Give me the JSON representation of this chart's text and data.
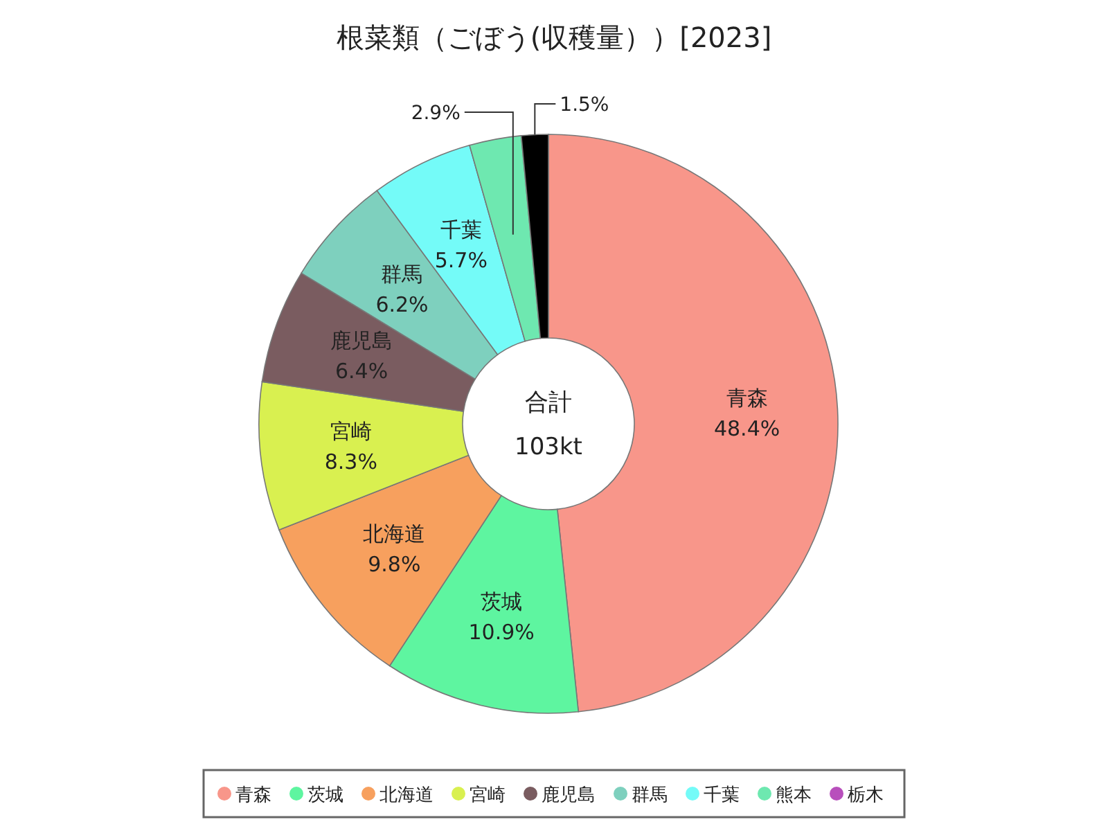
{
  "chart_data": {
    "type": "donut",
    "title": "根菜類（ごぼう(収穫量））[2023]",
    "categories": [
      "青森",
      "茨城",
      "北海道",
      "宮崎",
      "鹿児島",
      "群馬",
      "千葉",
      "熊本",
      null,
      "栃木"
    ],
    "values": [
      48.4,
      10.9,
      9.8,
      8.3,
      6.4,
      6.2,
      5.7,
      2.9,
      1.5,
      0
    ],
    "colors": [
      "#f8968a",
      "#5ef5a0",
      "#f7a05e",
      "#d9f050",
      "#7a5c60",
      "#7ed0be",
      "#74fbf8",
      "#6ee8b0",
      "#000000",
      "#b84fbc"
    ],
    "value_labels": [
      "48.4%",
      "10.9%",
      "9.8%",
      "8.3%",
      "6.4%",
      "6.2%",
      "5.7%",
      "2.9%",
      "1.5%",
      null
    ],
    "legend": "bottom",
    "annotations": [
      "合計",
      "103kt"
    ]
  }
}
